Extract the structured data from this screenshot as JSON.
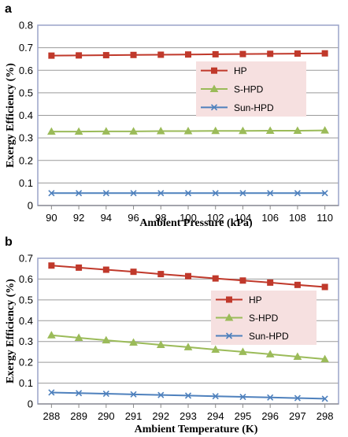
{
  "chart_data": [
    {
      "type": "line",
      "panel_label": "a",
      "xlabel": "Ambient Pressure (kPa)",
      "ylabel": "Exergy Efficiency (%)",
      "x": [
        90,
        92,
        94,
        96,
        98,
        100,
        102,
        104,
        106,
        108,
        110
      ],
      "ylim": [
        0,
        0.8
      ],
      "yticks": [
        "0",
        "0.1",
        "0.2",
        "0.3",
        "0.4",
        "0.5",
        "0.6",
        "0.7",
        "0.8"
      ],
      "grid": "horizontal",
      "legend_position": "right",
      "series": [
        {
          "name": "HP",
          "color": "#c0392b",
          "marker": "square",
          "values": [
            0.665,
            0.666,
            0.667,
            0.668,
            0.669,
            0.67,
            0.671,
            0.672,
            0.673,
            0.674,
            0.675
          ]
        },
        {
          "name": "S-HPD",
          "color": "#9bbb59",
          "marker": "triangle",
          "values": [
            0.328,
            0.328,
            0.329,
            0.329,
            0.33,
            0.33,
            0.331,
            0.331,
            0.332,
            0.332,
            0.333
          ]
        },
        {
          "name": "Sun-HPD",
          "color": "#4f81bd",
          "marker": "x",
          "values": [
            0.055,
            0.055,
            0.055,
            0.055,
            0.055,
            0.055,
            0.055,
            0.055,
            0.055,
            0.055,
            0.055
          ]
        }
      ]
    },
    {
      "type": "line",
      "panel_label": "b",
      "xlabel": "Ambient Temperature (K)",
      "ylabel": "Exergy Efficiency (%)",
      "x": [
        288,
        289,
        290,
        291,
        292,
        293,
        294,
        295,
        296,
        297,
        298
      ],
      "ylim": [
        0,
        0.7
      ],
      "yticks": [
        "0",
        "0.1",
        "0.2",
        "0.3",
        "0.4",
        "0.5",
        "0.6",
        "0.7"
      ],
      "grid": "horizontal",
      "legend_position": "right",
      "series": [
        {
          "name": "HP",
          "color": "#c0392b",
          "marker": "square",
          "values": [
            0.665,
            0.655,
            0.645,
            0.635,
            0.624,
            0.614,
            0.603,
            0.593,
            0.583,
            0.572,
            0.562
          ]
        },
        {
          "name": "S-HPD",
          "color": "#9bbb59",
          "marker": "triangle",
          "values": [
            0.33,
            0.318,
            0.306,
            0.295,
            0.284,
            0.273,
            0.261,
            0.25,
            0.239,
            0.227,
            0.215
          ]
        },
        {
          "name": "Sun-HPD",
          "color": "#4f81bd",
          "marker": "x",
          "values": [
            0.055,
            0.052,
            0.049,
            0.046,
            0.043,
            0.04,
            0.037,
            0.034,
            0.031,
            0.028,
            0.025
          ]
        }
      ]
    }
  ]
}
